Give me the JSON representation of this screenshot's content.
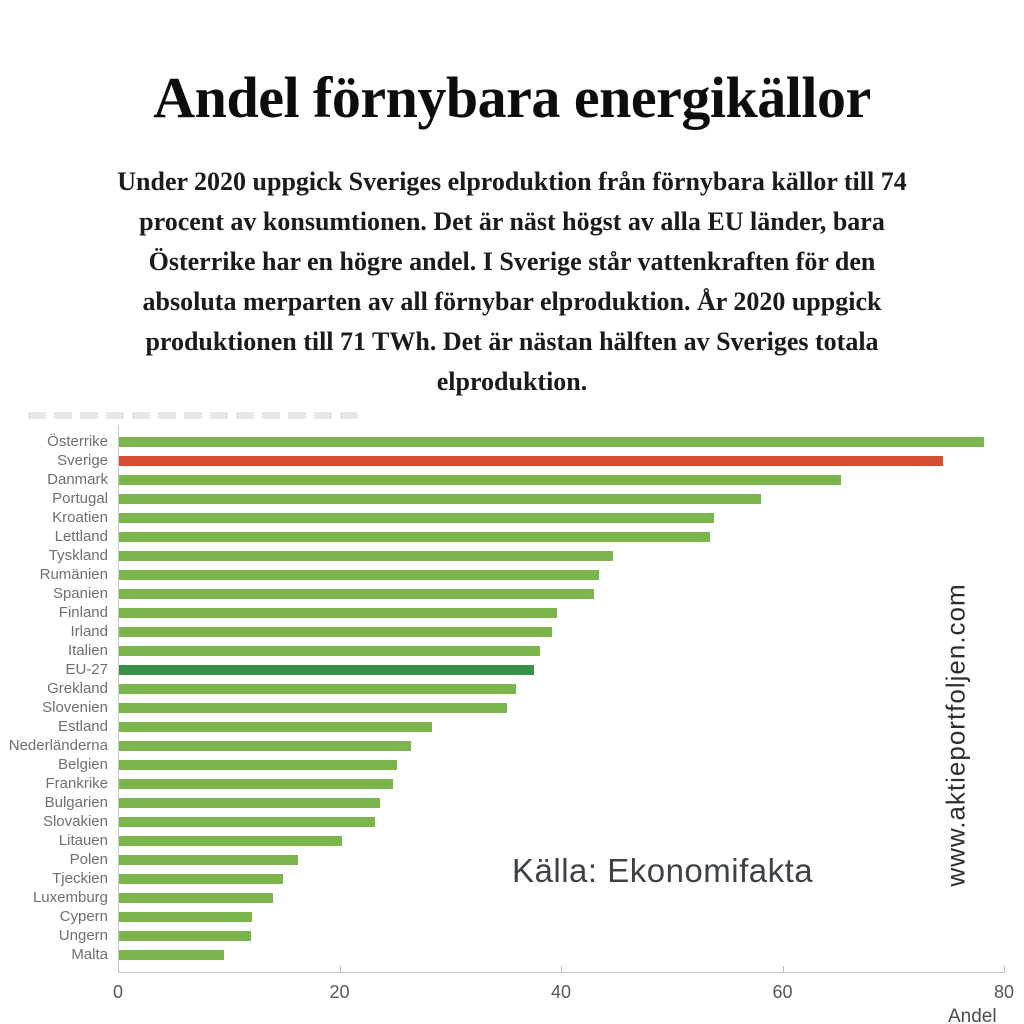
{
  "title": "Andel förnybara energikällor",
  "intro": {
    "lines": [
      "Under 2020 uppgick Sveriges elproduktion från förnybara källor till 74",
      "procent av konsumtionen. Det är näst högst av alla EU länder, bara",
      "Österrike har en högre andel. I Sverige står vattenkraften för den",
      "absoluta merparten av all förnybar elproduktion. År 2020 uppgick",
      "produktionen till 71 TWh. Det är nästan hälften av Sveriges totala",
      "elproduktion."
    ]
  },
  "source": "Källa: Ekonomifakta",
  "watermark": "www.aktieportfoljen.com",
  "chart_data": {
    "type": "bar",
    "orientation": "horizontal",
    "title": "",
    "xlabel": "Andel",
    "ylabel": "",
    "xlim": [
      0,
      80
    ],
    "x_ticks": [
      0,
      20,
      40,
      60,
      80
    ],
    "grid": false,
    "legend": "none",
    "colors": {
      "default": "#7ab64c",
      "highlight": "#d44e31",
      "eu": "#3a9149",
      "axis": "#c9c9c9",
      "tick_text": "#565656",
      "category_text": "#6f6f6f"
    },
    "items": [
      {
        "label": "Österrike",
        "value": 78.2,
        "color": "default"
      },
      {
        "label": "Sverige",
        "value": 74.5,
        "color": "highlight"
      },
      {
        "label": "Danmark",
        "value": 65.3,
        "color": "default"
      },
      {
        "label": "Portugal",
        "value": 58.0,
        "color": "default"
      },
      {
        "label": "Kroatien",
        "value": 53.8,
        "color": "default"
      },
      {
        "label": "Lettland",
        "value": 53.4,
        "color": "default"
      },
      {
        "label": "Tyskland",
        "value": 44.7,
        "color": "default"
      },
      {
        "label": "Rumänien",
        "value": 43.4,
        "color": "default"
      },
      {
        "label": "Spanien",
        "value": 42.9,
        "color": "default"
      },
      {
        "label": "Finland",
        "value": 39.6,
        "color": "default"
      },
      {
        "label": "Irland",
        "value": 39.1,
        "color": "default"
      },
      {
        "label": "Italien",
        "value": 38.1,
        "color": "default"
      },
      {
        "label": "EU-27",
        "value": 37.5,
        "color": "eu"
      },
      {
        "label": "Grekland",
        "value": 35.9,
        "color": "default"
      },
      {
        "label": "Slovenien",
        "value": 35.1,
        "color": "default"
      },
      {
        "label": "Estland",
        "value": 28.3,
        "color": "default"
      },
      {
        "label": "Nederländerna",
        "value": 26.4,
        "color": "default"
      },
      {
        "label": "Belgien",
        "value": 25.1,
        "color": "default"
      },
      {
        "label": "Frankrike",
        "value": 24.8,
        "color": "default"
      },
      {
        "label": "Bulgarien",
        "value": 23.6,
        "color": "default"
      },
      {
        "label": "Slovakien",
        "value": 23.1,
        "color": "default"
      },
      {
        "label": "Litauen",
        "value": 20.2,
        "color": "default"
      },
      {
        "label": "Polen",
        "value": 16.2,
        "color": "default"
      },
      {
        "label": "Tjeckien",
        "value": 14.8,
        "color": "default"
      },
      {
        "label": "Luxemburg",
        "value": 13.9,
        "color": "default"
      },
      {
        "label": "Cypern",
        "value": 12.0,
        "color": "default"
      },
      {
        "label": "Ungern",
        "value": 11.9,
        "color": "default"
      },
      {
        "label": "Malta",
        "value": 9.5,
        "color": "default"
      }
    ]
  }
}
